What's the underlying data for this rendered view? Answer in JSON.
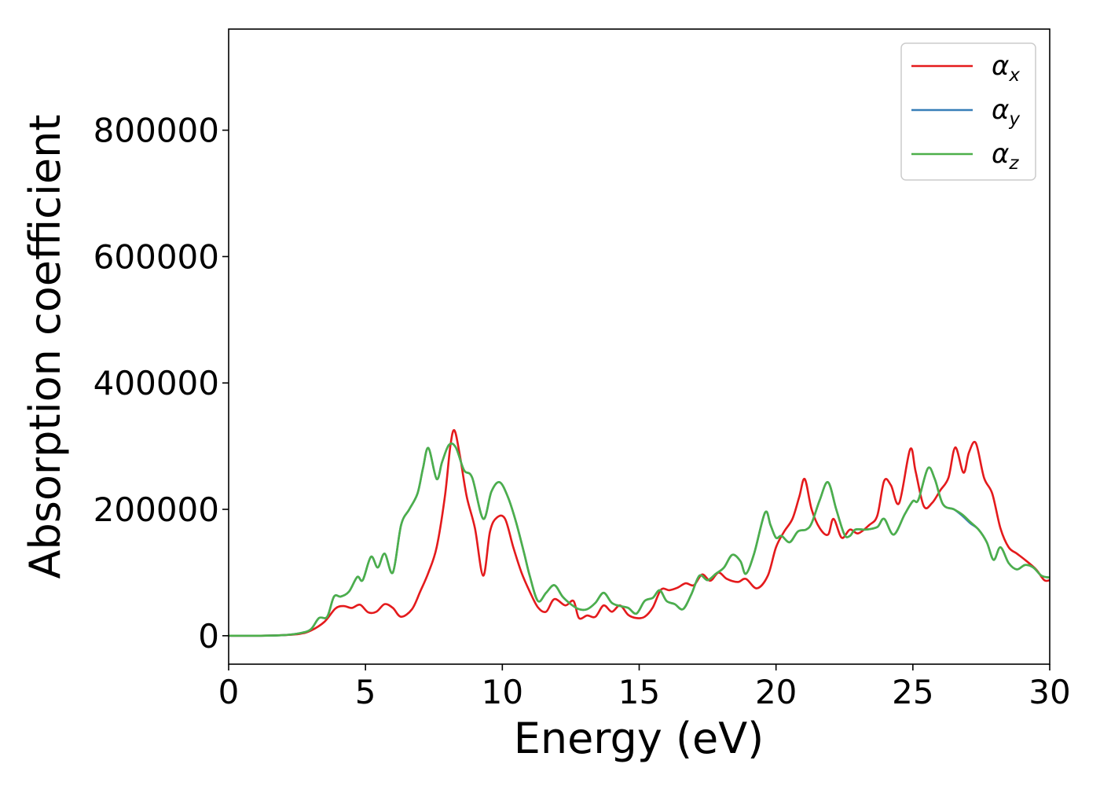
{
  "chart_data": {
    "type": "line",
    "title": "",
    "xlabel": "Energy (eV)",
    "ylabel": "Absorption coefficient",
    "xlim": [
      0,
      30
    ],
    "ylim": [
      -45000,
      960000
    ],
    "xticks": [
      0,
      5,
      10,
      15,
      20,
      25,
      30
    ],
    "yticks": [
      0,
      200000,
      400000,
      600000,
      800000
    ],
    "xtick_labels": [
      "0",
      "5",
      "10",
      "15",
      "20",
      "25",
      "30"
    ],
    "ytick_labels": [
      "0",
      "200000",
      "400000",
      "600000",
      "800000"
    ],
    "grid": false,
    "legend_position": "top-right",
    "series": [
      {
        "name": "αx",
        "symbol": "α",
        "subscript": "x",
        "color": "#e41a1c",
        "points": [
          [
            0,
            0
          ],
          [
            1,
            0
          ],
          [
            2,
            1000
          ],
          [
            2.6,
            3000
          ],
          [
            3,
            8000
          ],
          [
            3.5,
            22000
          ],
          [
            3.9,
            43000
          ],
          [
            4.2,
            47000
          ],
          [
            4.5,
            44000
          ],
          [
            4.8,
            49000
          ],
          [
            5.1,
            37000
          ],
          [
            5.4,
            38000
          ],
          [
            5.7,
            50000
          ],
          [
            6,
            44000
          ],
          [
            6.3,
            30000
          ],
          [
            6.7,
            42000
          ],
          [
            7,
            70000
          ],
          [
            7.3,
            100000
          ],
          [
            7.6,
            140000
          ],
          [
            7.9,
            220000
          ],
          [
            8.1,
            300000
          ],
          [
            8.25,
            325000
          ],
          [
            8.45,
            285000
          ],
          [
            8.7,
            220000
          ],
          [
            9,
            170000
          ],
          [
            9.3,
            95000
          ],
          [
            9.55,
            165000
          ],
          [
            9.8,
            187000
          ],
          [
            10.1,
            185000
          ],
          [
            10.4,
            140000
          ],
          [
            10.7,
            100000
          ],
          [
            11,
            70000
          ],
          [
            11.3,
            45000
          ],
          [
            11.6,
            38000
          ],
          [
            11.9,
            58000
          ],
          [
            12.3,
            48000
          ],
          [
            12.6,
            55000
          ],
          [
            12.8,
            28000
          ],
          [
            13.1,
            32000
          ],
          [
            13.4,
            30000
          ],
          [
            13.7,
            48000
          ],
          [
            14,
            38000
          ],
          [
            14.3,
            48000
          ],
          [
            14.6,
            33000
          ],
          [
            14.9,
            28000
          ],
          [
            15.2,
            30000
          ],
          [
            15.5,
            45000
          ],
          [
            15.8,
            73000
          ],
          [
            16.1,
            72000
          ],
          [
            16.4,
            76000
          ],
          [
            16.7,
            83000
          ],
          [
            17,
            80000
          ],
          [
            17.3,
            97000
          ],
          [
            17.6,
            87000
          ],
          [
            17.9,
            100000
          ],
          [
            18.2,
            90000
          ],
          [
            18.6,
            85000
          ],
          [
            18.9,
            90000
          ],
          [
            19.3,
            75000
          ],
          [
            19.7,
            95000
          ],
          [
            20,
            140000
          ],
          [
            20.3,
            165000
          ],
          [
            20.6,
            185000
          ],
          [
            20.85,
            220000
          ],
          [
            21.05,
            248000
          ],
          [
            21.3,
            200000
          ],
          [
            21.6,
            170000
          ],
          [
            21.9,
            160000
          ],
          [
            22.1,
            185000
          ],
          [
            22.4,
            155000
          ],
          [
            22.7,
            168000
          ],
          [
            23,
            162000
          ],
          [
            23.4,
            175000
          ],
          [
            23.7,
            190000
          ],
          [
            23.95,
            245000
          ],
          [
            24.2,
            238000
          ],
          [
            24.5,
            210000
          ],
          [
            24.9,
            295000
          ],
          [
            25.1,
            260000
          ],
          [
            25.4,
            205000
          ],
          [
            25.7,
            210000
          ],
          [
            26,
            230000
          ],
          [
            26.3,
            250000
          ],
          [
            26.55,
            298000
          ],
          [
            26.85,
            258000
          ],
          [
            27.05,
            290000
          ],
          [
            27.3,
            305000
          ],
          [
            27.6,
            250000
          ],
          [
            27.9,
            225000
          ],
          [
            28.2,
            170000
          ],
          [
            28.5,
            140000
          ],
          [
            28.8,
            130000
          ],
          [
            29.1,
            120000
          ],
          [
            29.5,
            105000
          ],
          [
            29.8,
            88000
          ],
          [
            30,
            88000
          ]
        ]
      },
      {
        "name": "αy",
        "symbol": "α",
        "subscript": "y",
        "color": "#377eb8",
        "points": [
          [
            0,
            0
          ],
          [
            1,
            0
          ],
          [
            2,
            1000
          ],
          [
            2.6,
            4000
          ],
          [
            3,
            10000
          ],
          [
            3.3,
            28000
          ],
          [
            3.6,
            30000
          ],
          [
            3.85,
            62000
          ],
          [
            4.1,
            62000
          ],
          [
            4.4,
            70000
          ],
          [
            4.7,
            93000
          ],
          [
            4.9,
            88000
          ],
          [
            5.2,
            125000
          ],
          [
            5.45,
            108000
          ],
          [
            5.7,
            130000
          ],
          [
            6,
            100000
          ],
          [
            6.3,
            175000
          ],
          [
            6.6,
            200000
          ],
          [
            6.9,
            225000
          ],
          [
            7.1,
            265000
          ],
          [
            7.3,
            297000
          ],
          [
            7.6,
            248000
          ],
          [
            7.8,
            275000
          ],
          [
            8.05,
            302000
          ],
          [
            8.3,
            298000
          ],
          [
            8.6,
            262000
          ],
          [
            8.9,
            250000
          ],
          [
            9.3,
            185000
          ],
          [
            9.6,
            228000
          ],
          [
            9.9,
            243000
          ],
          [
            10.2,
            220000
          ],
          [
            10.5,
            180000
          ],
          [
            10.8,
            130000
          ],
          [
            11,
            95000
          ],
          [
            11.3,
            55000
          ],
          [
            11.6,
            68000
          ],
          [
            11.9,
            80000
          ],
          [
            12.2,
            62000
          ],
          [
            12.5,
            50000
          ],
          [
            12.8,
            42000
          ],
          [
            13.1,
            42000
          ],
          [
            13.4,
            52000
          ],
          [
            13.7,
            68000
          ],
          [
            14,
            52000
          ],
          [
            14.3,
            47000
          ],
          [
            14.6,
            44000
          ],
          [
            14.9,
            35000
          ],
          [
            15.2,
            55000
          ],
          [
            15.5,
            60000
          ],
          [
            15.75,
            72000
          ],
          [
            16,
            55000
          ],
          [
            16.3,
            50000
          ],
          [
            16.6,
            42000
          ],
          [
            16.9,
            65000
          ],
          [
            17.2,
            95000
          ],
          [
            17.5,
            88000
          ],
          [
            17.8,
            98000
          ],
          [
            18.1,
            108000
          ],
          [
            18.4,
            128000
          ],
          [
            18.7,
            118000
          ],
          [
            18.9,
            98000
          ],
          [
            19.2,
            130000
          ],
          [
            19.6,
            195000
          ],
          [
            19.8,
            175000
          ],
          [
            20,
            155000
          ],
          [
            20.2,
            158000
          ],
          [
            20.5,
            148000
          ],
          [
            20.8,
            165000
          ],
          [
            21.1,
            168000
          ],
          [
            21.3,
            178000
          ],
          [
            21.6,
            215000
          ],
          [
            21.9,
            243000
          ],
          [
            22.2,
            200000
          ],
          [
            22.5,
            160000
          ],
          [
            22.7,
            158000
          ],
          [
            22.9,
            168000
          ],
          [
            23.3,
            168000
          ],
          [
            23.7,
            172000
          ],
          [
            23.95,
            185000
          ],
          [
            24.3,
            160000
          ],
          [
            24.7,
            192000
          ],
          [
            25,
            213000
          ],
          [
            25.2,
            215000
          ],
          [
            25.55,
            265000
          ],
          [
            25.8,
            248000
          ],
          [
            26.1,
            208000
          ],
          [
            26.5,
            200000
          ],
          [
            26.8,
            190000
          ],
          [
            27.1,
            178000
          ],
          [
            27.4,
            168000
          ],
          [
            27.7,
            148000
          ],
          [
            27.95,
            120000
          ],
          [
            28.2,
            140000
          ],
          [
            28.5,
            115000
          ],
          [
            28.8,
            105000
          ],
          [
            29.1,
            112000
          ],
          [
            29.4,
            108000
          ],
          [
            29.7,
            95000
          ],
          [
            30,
            92000
          ]
        ]
      },
      {
        "name": "αz",
        "symbol": "α",
        "subscript": "z",
        "color": "#4daf4a",
        "points": [
          [
            0,
            0
          ],
          [
            1,
            0
          ],
          [
            2,
            1000
          ],
          [
            2.6,
            4000
          ],
          [
            3,
            10000
          ],
          [
            3.3,
            28000
          ],
          [
            3.6,
            30000
          ],
          [
            3.85,
            62000
          ],
          [
            4.1,
            62000
          ],
          [
            4.4,
            70000
          ],
          [
            4.7,
            93000
          ],
          [
            4.9,
            88000
          ],
          [
            5.2,
            125000
          ],
          [
            5.45,
            108000
          ],
          [
            5.7,
            130000
          ],
          [
            6,
            100000
          ],
          [
            6.3,
            175000
          ],
          [
            6.6,
            200000
          ],
          [
            6.9,
            225000
          ],
          [
            7.1,
            265000
          ],
          [
            7.3,
            297000
          ],
          [
            7.6,
            248000
          ],
          [
            7.8,
            275000
          ],
          [
            8.05,
            302000
          ],
          [
            8.3,
            298000
          ],
          [
            8.6,
            262000
          ],
          [
            8.9,
            250000
          ],
          [
            9.3,
            185000
          ],
          [
            9.6,
            228000
          ],
          [
            9.9,
            243000
          ],
          [
            10.2,
            220000
          ],
          [
            10.5,
            180000
          ],
          [
            10.8,
            130000
          ],
          [
            11,
            95000
          ],
          [
            11.3,
            55000
          ],
          [
            11.6,
            68000
          ],
          [
            11.9,
            80000
          ],
          [
            12.2,
            62000
          ],
          [
            12.5,
            50000
          ],
          [
            12.8,
            42000
          ],
          [
            13.1,
            42000
          ],
          [
            13.4,
            52000
          ],
          [
            13.7,
            68000
          ],
          [
            14,
            52000
          ],
          [
            14.3,
            47000
          ],
          [
            14.6,
            44000
          ],
          [
            14.9,
            35000
          ],
          [
            15.2,
            55000
          ],
          [
            15.5,
            60000
          ],
          [
            15.75,
            72000
          ],
          [
            16,
            55000
          ],
          [
            16.3,
            50000
          ],
          [
            16.6,
            42000
          ],
          [
            16.9,
            65000
          ],
          [
            17.2,
            95000
          ],
          [
            17.5,
            88000
          ],
          [
            17.8,
            98000
          ],
          [
            18.1,
            108000
          ],
          [
            18.4,
            128000
          ],
          [
            18.7,
            118000
          ],
          [
            18.9,
            98000
          ],
          [
            19.2,
            130000
          ],
          [
            19.6,
            195000
          ],
          [
            19.8,
            175000
          ],
          [
            20,
            155000
          ],
          [
            20.2,
            158000
          ],
          [
            20.5,
            148000
          ],
          [
            20.8,
            165000
          ],
          [
            21.1,
            168000
          ],
          [
            21.3,
            178000
          ],
          [
            21.6,
            215000
          ],
          [
            21.9,
            243000
          ],
          [
            22.2,
            200000
          ],
          [
            22.5,
            160000
          ],
          [
            22.7,
            158000
          ],
          [
            22.9,
            168000
          ],
          [
            23.3,
            168000
          ],
          [
            23.7,
            172000
          ],
          [
            23.95,
            185000
          ],
          [
            24.3,
            160000
          ],
          [
            24.7,
            192000
          ],
          [
            25,
            213000
          ],
          [
            25.2,
            215000
          ],
          [
            25.55,
            265000
          ],
          [
            25.8,
            248000
          ],
          [
            26.1,
            208000
          ],
          [
            26.5,
            200000
          ],
          [
            26.8,
            192000
          ],
          [
            27.1,
            180000
          ],
          [
            27.4,
            168000
          ],
          [
            27.7,
            148000
          ],
          [
            27.95,
            120000
          ],
          [
            28.2,
            140000
          ],
          [
            28.5,
            115000
          ],
          [
            28.8,
            105000
          ],
          [
            29.1,
            112000
          ],
          [
            29.4,
            108000
          ],
          [
            29.7,
            95000
          ],
          [
            30,
            92000
          ]
        ]
      }
    ]
  }
}
